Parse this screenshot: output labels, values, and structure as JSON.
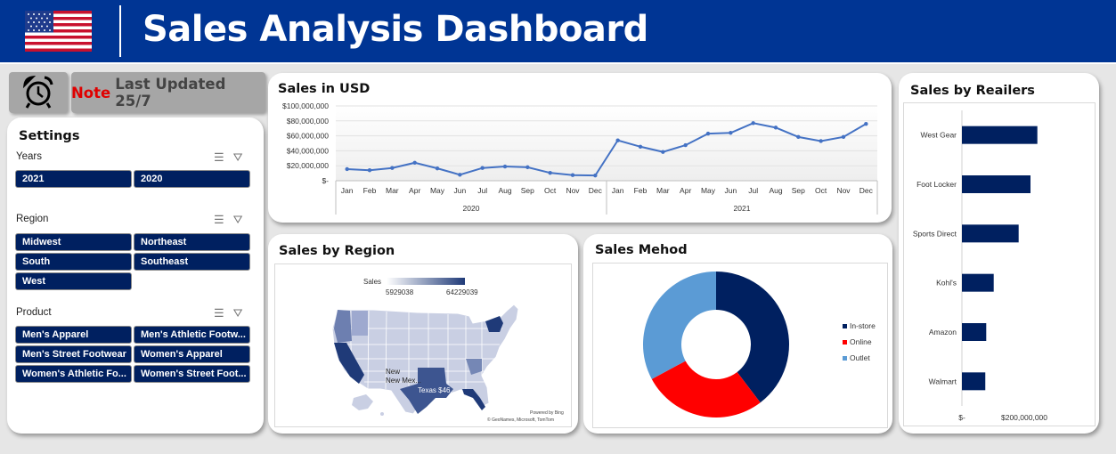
{
  "header": {
    "title": "Sales Analysis Dashboard",
    "flag_icon": "us-flag-icon"
  },
  "note": {
    "label": "Note",
    "text": "Last Updated 25/7",
    "label_color": "#e00000"
  },
  "settings": {
    "title": "Settings",
    "years": {
      "label": "Years",
      "items": [
        "2021",
        "2020"
      ]
    },
    "region": {
      "label": "Region",
      "items": [
        "Midwest",
        "Northeast",
        "South",
        "Southeast",
        "West"
      ]
    },
    "product": {
      "label": "Product",
      "items": [
        "Men's Apparel",
        "Men's Athletic Footw...",
        "Men's Street Footwear",
        "Women's Apparel",
        "Women's Athletic Fo...",
        "Women's Street Foot..."
      ]
    }
  },
  "sales_usd": {
    "title": "Sales in USD",
    "y_ticks": [
      "$100,000,000",
      "$80,000,000",
      "$60,000,000",
      "$40,000,000",
      "$20,000,000",
      "$-"
    ],
    "months": [
      "Jan",
      "Feb",
      "Mar",
      "Apr",
      "May",
      "Jun",
      "Jul",
      "Aug",
      "Sep",
      "Oct",
      "Nov",
      "Dec"
    ],
    "years": [
      "2020",
      "2021"
    ]
  },
  "region": {
    "title": "Sales by Region",
    "legend_label": "Sales",
    "legend_min": "5929038",
    "legend_max": "64229039",
    "label_newmex": "New Mex...",
    "label_texas": "Texas $46,...",
    "attribution_1": "Powered by Bing",
    "attribution_2": "© GeoNames, Microsoft, TomTom"
  },
  "method": {
    "title": "Sales Mehod"
  },
  "retailers": {
    "title": "Sales by Reailers",
    "x_ticks": [
      "$-",
      "$200,000,000"
    ]
  },
  "colors": {
    "header": "#003594",
    "chip": "#002060",
    "line": "#4472c4",
    "bar": "#002060"
  },
  "chart_data": [
    {
      "type": "line",
      "title": "Sales in USD",
      "categories": [
        "Jan 2020",
        "Feb 2020",
        "Mar 2020",
        "Apr 2020",
        "May 2020",
        "Jun 2020",
        "Jul 2020",
        "Aug 2020",
        "Sep 2020",
        "Oct 2020",
        "Nov 2020",
        "Dec 2020",
        "Jan 2021",
        "Feb 2021",
        "Mar 2021",
        "Apr 2021",
        "May 2021",
        "Jun 2021",
        "Jul 2021",
        "Aug 2021",
        "Sep 2021",
        "Oct 2021",
        "Nov 2021",
        "Dec 2021"
      ],
      "values": [
        15500000,
        14000000,
        17000000,
        24000000,
        16500000,
        8000000,
        17000000,
        19000000,
        18000000,
        10500000,
        7500000,
        7000000,
        54000000,
        45500000,
        38500000,
        47500000,
        63000000,
        64000000,
        77000000,
        71000000,
        58500000,
        53000000,
        58500000,
        76000000
      ],
      "ylim": [
        0,
        100000000
      ],
      "grid": true
    },
    {
      "type": "pie",
      "title": "Sales Mehod",
      "categories": [
        "In-store",
        "Online",
        "Outlet"
      ],
      "values": [
        356,
        247,
        295
      ],
      "colors": [
        "#002060",
        "#ff0000",
        "#5b9bd5"
      ],
      "legend": "right"
    },
    {
      "type": "bar",
      "title": "Sales by Reailers",
      "categories": [
        "West Gear",
        "Foot Locker",
        "Sports Direct",
        "Kohl's",
        "Amazon",
        "Walmart"
      ],
      "values": [
        242000000,
        220000000,
        182000000,
        102000000,
        78000000,
        75000000
      ],
      "orientation": "horizontal",
      "xlim": [
        0,
        400000000
      ]
    }
  ]
}
